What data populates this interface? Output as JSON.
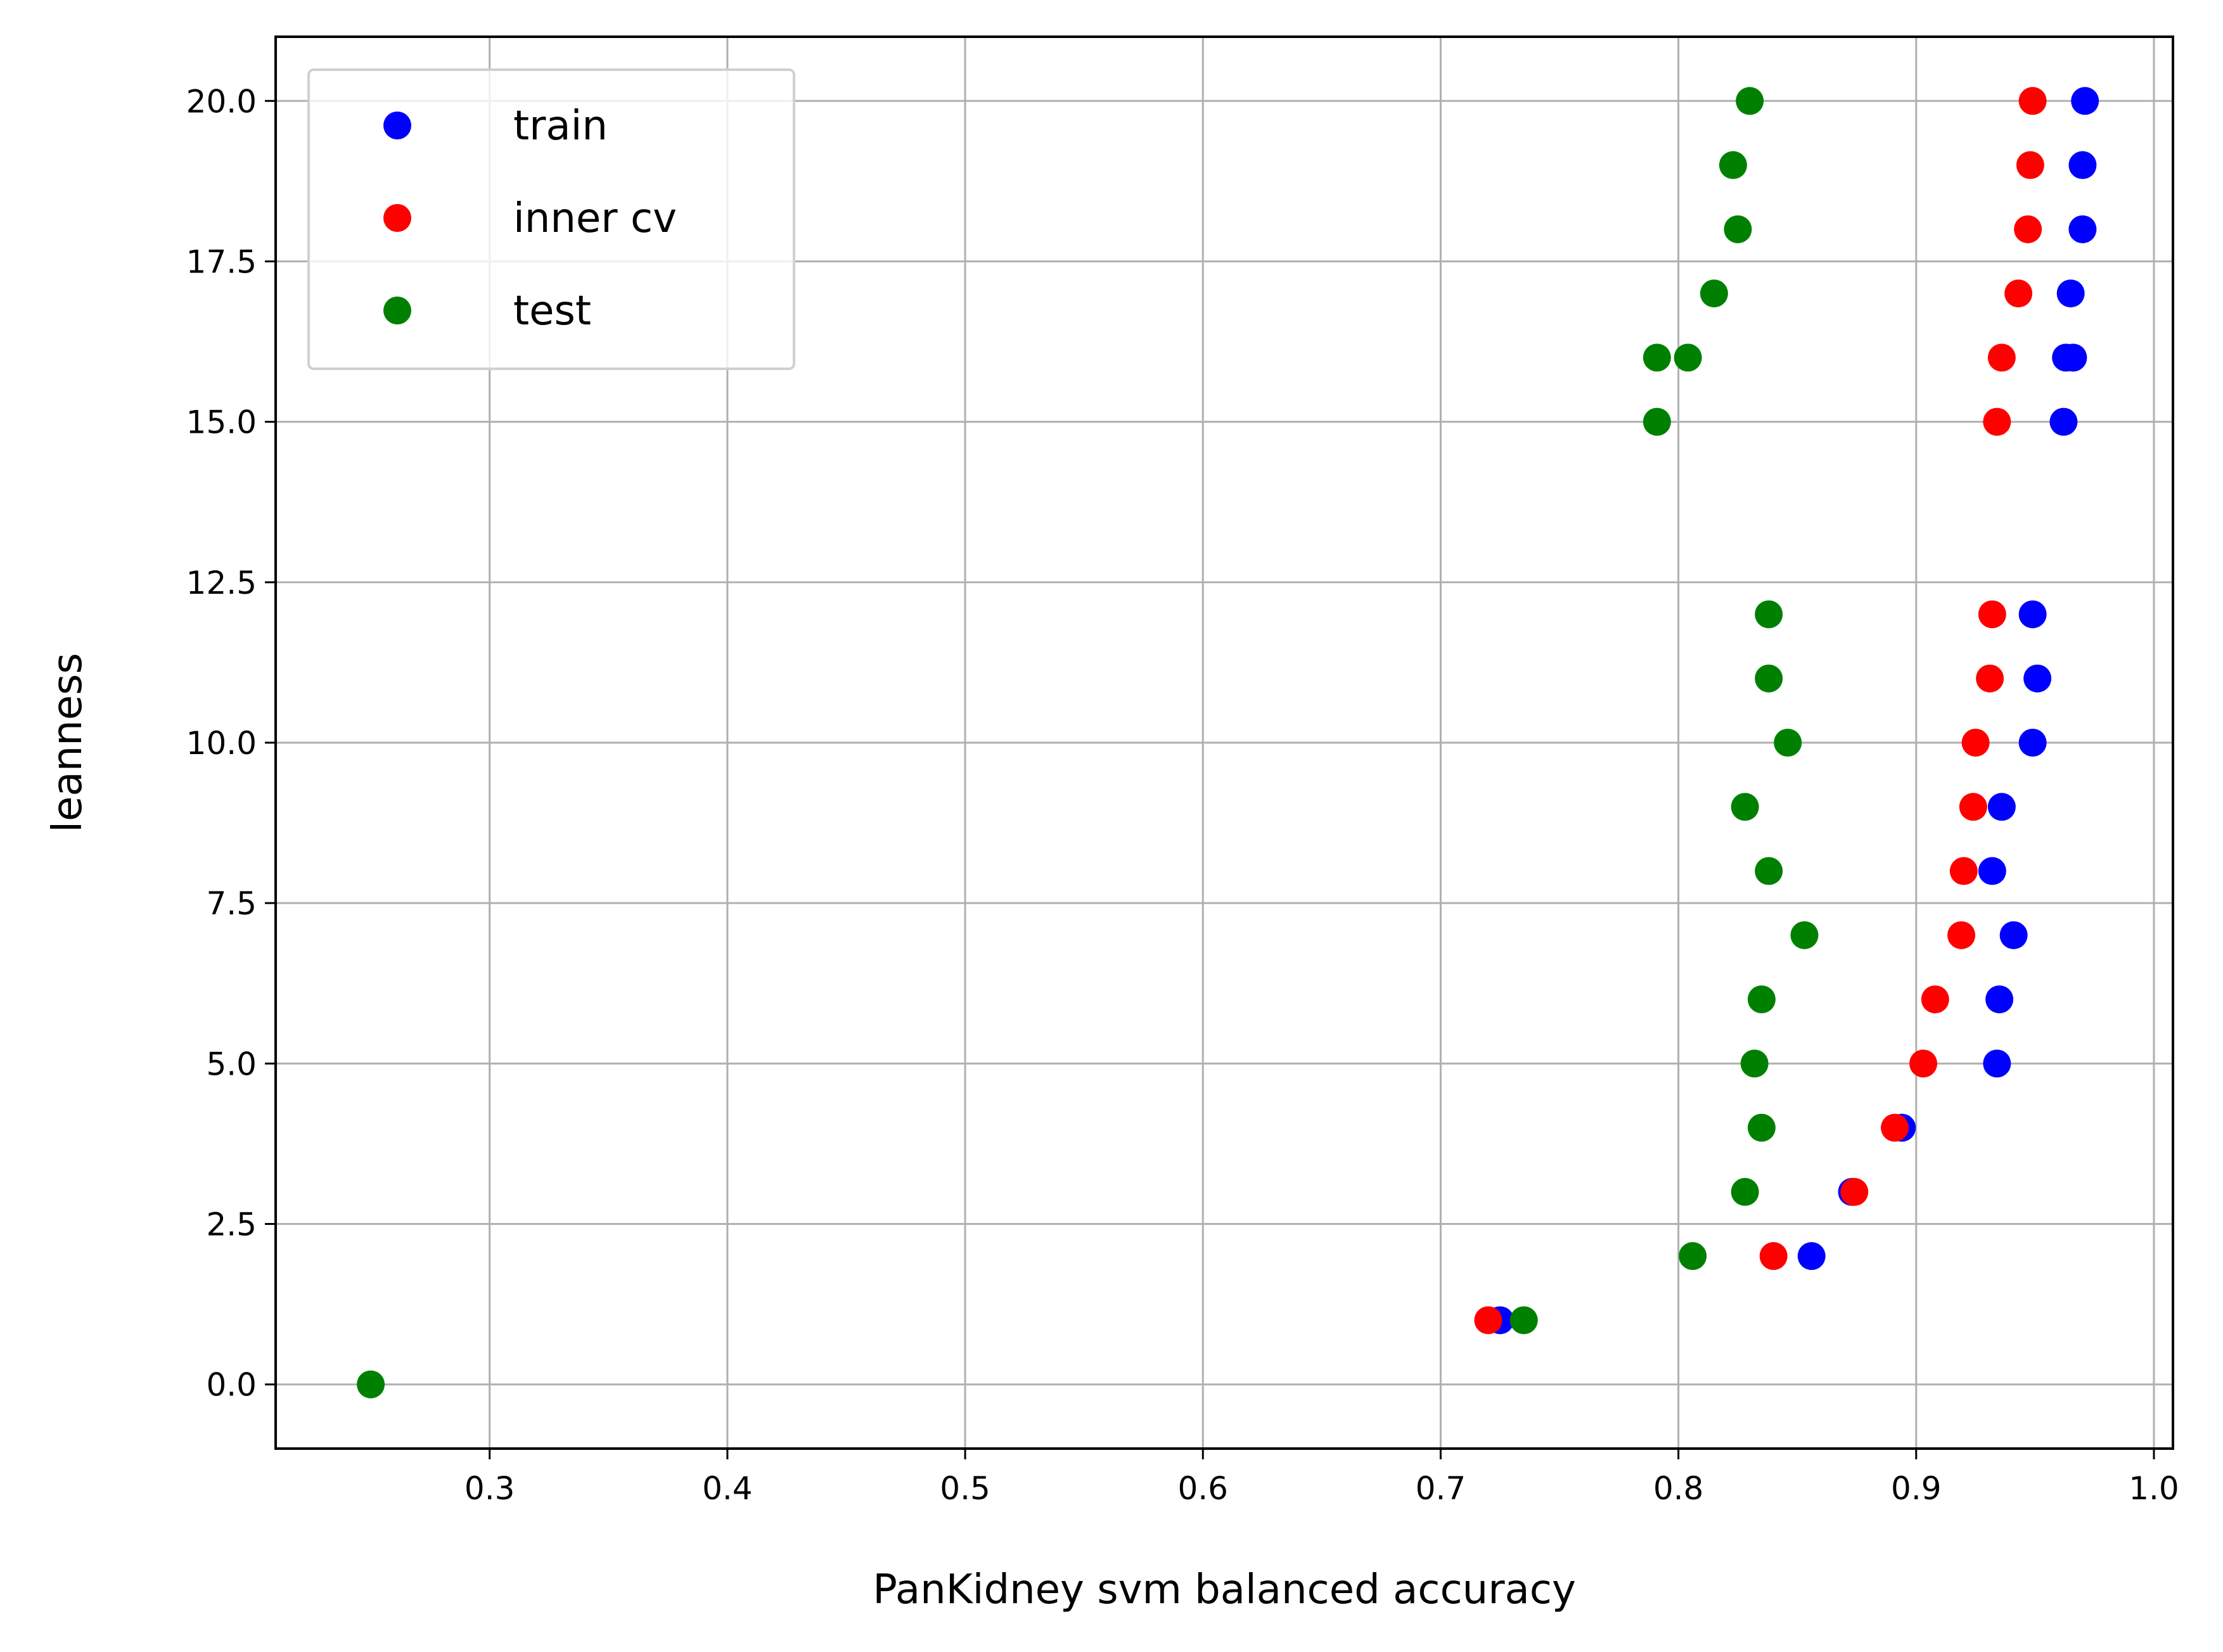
{
  "chart_data": {
    "type": "scatter",
    "title": "",
    "xlabel": "PanKidney svm balanced accuracy",
    "ylabel": "leanness",
    "xlim": [
      0.21,
      1.008
    ],
    "ylim": [
      -1.0,
      21.0
    ],
    "xticks": [
      0.3,
      0.4,
      0.5,
      0.6,
      0.7,
      0.8,
      0.9,
      1.0
    ],
    "xtick_labels": [
      "0.3",
      "0.4",
      "0.5",
      "0.6",
      "0.7",
      "0.8",
      "0.9",
      "1.0"
    ],
    "yticks": [
      0.0,
      2.5,
      5.0,
      7.5,
      10.0,
      12.5,
      15.0,
      17.5,
      20.0
    ],
    "ytick_labels": [
      "0.0",
      "2.5",
      "5.0",
      "7.5",
      "10.0",
      "12.5",
      "15.0",
      "17.5",
      "20.0"
    ],
    "grid": true,
    "legend_position": "top-left",
    "series": [
      {
        "name": "train",
        "color": "#0000ff",
        "points": [
          [
            0.725,
            1
          ],
          [
            0.856,
            2
          ],
          [
            0.873,
            3
          ],
          [
            0.894,
            4
          ],
          [
            0.934,
            5
          ],
          [
            0.935,
            6
          ],
          [
            0.941,
            7
          ],
          [
            0.932,
            8
          ],
          [
            0.936,
            9
          ],
          [
            0.949,
            10
          ],
          [
            0.951,
            11
          ],
          [
            0.949,
            12
          ],
          [
            0.962,
            15
          ],
          [
            0.963,
            16
          ],
          [
            0.966,
            16
          ],
          [
            0.965,
            17
          ],
          [
            0.97,
            18
          ],
          [
            0.97,
            19
          ],
          [
            0.971,
            20
          ]
        ]
      },
      {
        "name": "inner cv",
        "color": "#ff0000",
        "points": [
          [
            0.72,
            1
          ],
          [
            0.84,
            2
          ],
          [
            0.874,
            3
          ],
          [
            0.891,
            4
          ],
          [
            0.903,
            5
          ],
          [
            0.908,
            6
          ],
          [
            0.919,
            7
          ],
          [
            0.92,
            8
          ],
          [
            0.924,
            9
          ],
          [
            0.925,
            10
          ],
          [
            0.931,
            11
          ],
          [
            0.932,
            12
          ],
          [
            0.934,
            15
          ],
          [
            0.936,
            16
          ],
          [
            0.943,
            17
          ],
          [
            0.947,
            18
          ],
          [
            0.948,
            19
          ],
          [
            0.949,
            20
          ]
        ]
      },
      {
        "name": "test",
        "color": "#008000",
        "points": [
          [
            0.25,
            0
          ],
          [
            0.735,
            1
          ],
          [
            0.806,
            2
          ],
          [
            0.828,
            3
          ],
          [
            0.835,
            4
          ],
          [
            0.832,
            5
          ],
          [
            0.835,
            6
          ],
          [
            0.853,
            7
          ],
          [
            0.838,
            8
          ],
          [
            0.828,
            9
          ],
          [
            0.846,
            10
          ],
          [
            0.838,
            11
          ],
          [
            0.838,
            12
          ],
          [
            0.791,
            15
          ],
          [
            0.791,
            16
          ],
          [
            0.804,
            16
          ],
          [
            0.815,
            17
          ],
          [
            0.825,
            18
          ],
          [
            0.823,
            19
          ],
          [
            0.83,
            20
          ]
        ]
      }
    ]
  }
}
